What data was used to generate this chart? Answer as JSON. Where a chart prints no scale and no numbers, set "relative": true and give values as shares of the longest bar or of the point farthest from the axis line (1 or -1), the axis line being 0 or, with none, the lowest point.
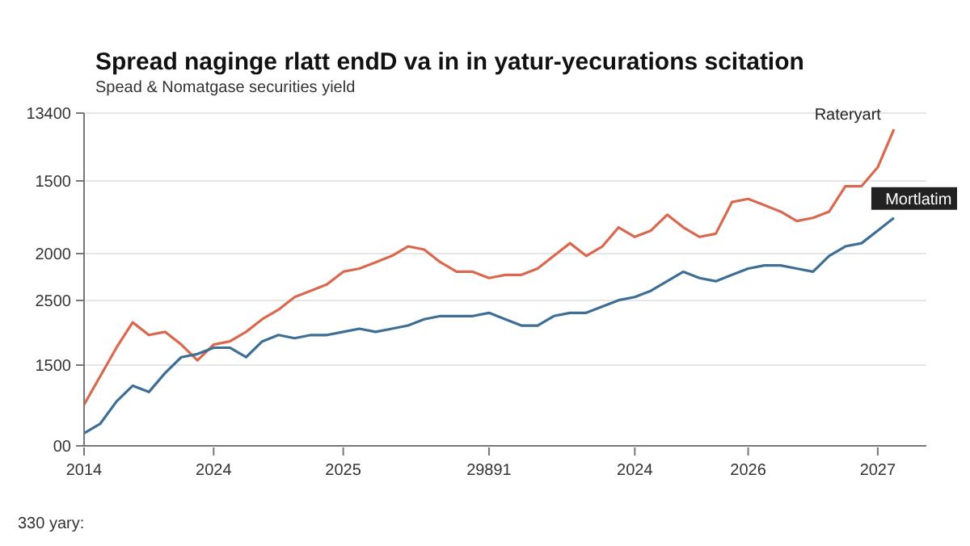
{
  "chart_data": {
    "type": "line",
    "title": "Spread naginge rlatt endD va in  in yatur-yecurations scitation",
    "subtitle": "Spead & Nomatgase securities yield",
    "annotations": [
      "00",
      "1500",
      "2500",
      "2000",
      "1500",
      "13400",
      "330 yary:"
    ],
    "categories": [
      "2014",
      null,
      null,
      null,
      null,
      null,
      null,
      null,
      "2024",
      null,
      null,
      null,
      null,
      null,
      null,
      null,
      "2025",
      null,
      null,
      null,
      null,
      null,
      null,
      null,
      null,
      "29891",
      null,
      null,
      null,
      null,
      null,
      null,
      null,
      null,
      "2024",
      null,
      null,
      null,
      null,
      null,
      null,
      "2026",
      null,
      null,
      null,
      null,
      null,
      null,
      null,
      "2027",
      null,
      null,
      null
    ],
    "relative": true,
    "grid": "y",
    "legend": false,
    "marker": "none",
    "line_style": "solid",
    "series": [
      {
        "name": "Rateryart",
        "color": "#d9694e",
        "values": [
          0.13,
          0.22,
          0.31,
          0.39,
          0.35,
          0.36,
          0.32,
          0.27,
          0.32,
          0.33,
          0.36,
          0.4,
          0.43,
          0.47,
          0.49,
          0.51,
          0.55,
          0.56,
          0.58,
          0.6,
          0.63,
          0.62,
          0.58,
          0.55,
          0.55,
          0.53,
          0.54,
          0.54,
          0.56,
          0.6,
          0.64,
          0.6,
          0.63,
          0.69,
          0.66,
          0.68,
          0.73,
          0.69,
          0.66,
          0.67,
          0.77,
          0.78,
          0.76,
          0.74,
          0.71,
          0.72,
          0.74,
          0.82,
          0.82,
          0.88,
          1,
          null,
          null
        ]
      },
      {
        "name": "Mortlatim",
        "color": "#3d6e95",
        "values": [
          0.04,
          0.07,
          0.14,
          0.19,
          0.17,
          0.23,
          0.28,
          0.29,
          0.31,
          0.31,
          0.28,
          0.33,
          0.35,
          0.34,
          0.35,
          0.35,
          0.36,
          0.37,
          0.36,
          0.37,
          0.38,
          0.4,
          0.41,
          0.41,
          0.41,
          0.42,
          0.4,
          0.38,
          0.38,
          0.41,
          0.42,
          0.42,
          0.44,
          0.46,
          0.47,
          0.49,
          0.52,
          0.55,
          0.53,
          0.52,
          0.54,
          0.56,
          0.57,
          0.57,
          0.56,
          0.55,
          0.6,
          0.63,
          0.64,
          0.68,
          0.72,
          null,
          null
        ]
      }
    ]
  }
}
